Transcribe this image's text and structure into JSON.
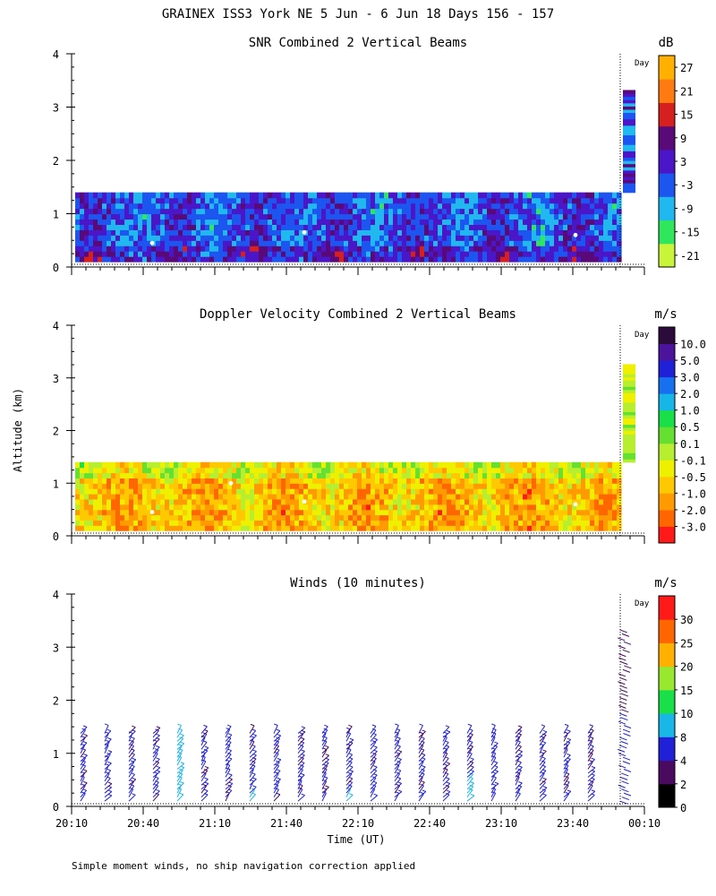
{
  "main_title": "GRAINEX ISS3 York NE   5 Jun -  6 Jun 18 Days 156 - 157",
  "footnote": "Simple moment winds, no ship navigation correction applied",
  "ylabel": "Altitude (km)",
  "xlabel": "Time (UT)",
  "day_marker": "Day",
  "colors": {
    "snr": [
      "#c8f53a",
      "#2fe65c",
      "#21b8f0",
      "#1c55f0",
      "#4a16c8",
      "#5a0a78",
      "#d62020",
      "#ff7a10",
      "#ffb000"
    ],
    "vel": [
      "#ff1a1a",
      "#ff6600",
      "#ff9a00",
      "#ffc800",
      "#eef000",
      "#b8ee30",
      "#66e030",
      "#19e048",
      "#17b6e8",
      "#1670f0",
      "#2020d8",
      "#4c149c",
      "#2a0b3c"
    ],
    "wind": [
      "#000000",
      "#4a0a60",
      "#2020d8",
      "#19b6e8",
      "#19e048",
      "#98e830",
      "#ffb000",
      "#ff6600",
      "#ff1a1a"
    ]
  },
  "chart_data": [
    {
      "type": "heatmap",
      "title": "SNR Combined 2 Vertical Beams",
      "ylabel": "Altitude (km)",
      "ylim": [
        0,
        4
      ],
      "yticks": [
        "0",
        "1",
        "2",
        "3",
        "4"
      ],
      "colorbar": {
        "unit": "dB",
        "labels": [
          "-21",
          "-15",
          "-9",
          "-3",
          "3",
          "9",
          "15",
          "21",
          "27"
        ]
      }
    },
    {
      "type": "heatmap",
      "title": "Doppler Velocity Combined 2 Vertical Beams",
      "ylabel": "Altitude (km)",
      "ylim": [
        0,
        4
      ],
      "yticks": [
        "0",
        "1",
        "2",
        "3",
        "4"
      ],
      "colorbar": {
        "unit": "m/s",
        "labels": [
          "-3.0",
          "-2.0",
          "-1.0",
          "-0.5",
          "-0.1",
          "0.1",
          "0.5",
          "1.0",
          "2.0",
          "3.0",
          "5.0",
          "10.0"
        ]
      }
    },
    {
      "type": "scatter",
      "title": "Winds (10 minutes)",
      "xlabel": "Time (UT)",
      "ylabel": "Altitude (km)",
      "ylim": [
        0,
        4
      ],
      "yticks": [
        "0",
        "1",
        "2",
        "3",
        "4"
      ],
      "xticks": [
        "20:10",
        "20:40",
        "21:10",
        "21:40",
        "22:10",
        "22:40",
        "23:10",
        "23:40",
        "00:10"
      ],
      "colorbar": {
        "unit": "m/s",
        "labels": [
          "0",
          "2",
          "4",
          "8",
          "10",
          "15",
          "20",
          "25",
          "30"
        ]
      }
    }
  ]
}
